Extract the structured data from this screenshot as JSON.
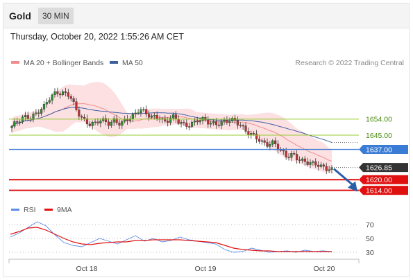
{
  "header": {
    "symbol": "Gold",
    "timeframe": "30 MIN",
    "timestamp": "Thursday, October 20, 2022 1:55:26 AM CET"
  },
  "legend": {
    "bollinger_label": "MA 20 + Bollinger Bands",
    "ma50_label": "MA 50",
    "credit": "Research © 2022 Trading Central",
    "rsi_label": "RSI",
    "rsi_ma_label": "9MA"
  },
  "colors": {
    "candle_up": "#2e8b2e",
    "candle_down": "#c03030",
    "bollinger_band": "#fbd6d8",
    "ma20": "#f08c8c",
    "ma50": "#3c5fa0",
    "resistance": "#9acd32",
    "pivot": "#3a7bd5",
    "support": "#e01010",
    "arrow": "#2a5da8",
    "rsi": "#5b8de6",
    "rsi_ma": "#e01010"
  },
  "chart_data": [
    {
      "type": "candlestick",
      "title": "Gold",
      "timeframe": "30 MIN",
      "x_ticks": [
        "Oct 18",
        "Oct 19",
        "Oct 20"
      ],
      "ylim": [
        1608,
        1682
      ],
      "series": [
        {
          "name": "MA 20 + Bollinger Bands",
          "shape": "band"
        },
        {
          "name": "MA 50",
          "shape": "line"
        }
      ],
      "levels": [
        {
          "value": 1654.0,
          "label": "1654.00",
          "kind": "resistance"
        },
        {
          "value": 1645.0,
          "label": "1645.00",
          "kind": "resistance"
        },
        {
          "value": 1637.0,
          "label": "1637.00",
          "kind": "pivot"
        },
        {
          "value": 1626.85,
          "label": "1626.85",
          "kind": "last_price"
        },
        {
          "value": 1620.0,
          "label": "1620.00",
          "kind": "support"
        },
        {
          "value": 1614.0,
          "label": "1614.00",
          "kind": "support"
        }
      ],
      "close_path": [
        1650,
        1652,
        1655,
        1656,
        1658,
        1660,
        1666,
        1670,
        1669,
        1667,
        1659,
        1655,
        1652,
        1651,
        1653,
        1652,
        1654,
        1651,
        1653,
        1656,
        1661,
        1657,
        1654,
        1655,
        1653,
        1656,
        1652,
        1650,
        1652,
        1654,
        1653,
        1651,
        1652,
        1653,
        1653,
        1652,
        1650,
        1647,
        1644,
        1640,
        1640,
        1642,
        1636,
        1632,
        1634,
        1632,
        1630,
        1628,
        1628,
        1627,
        1627
      ],
      "forecast": {
        "from": 1626.85,
        "to": 1614.0
      }
    },
    {
      "type": "line",
      "title": "RSI",
      "ylim": [
        22,
        78
      ],
      "y_ticks": [
        70,
        50,
        30
      ],
      "series": [
        {
          "name": "RSI",
          "values": [
            52,
            58,
            66,
            74,
            68,
            55,
            44,
            40,
            38,
            44,
            50,
            46,
            42,
            48,
            54,
            46,
            50,
            45,
            47,
            52,
            48,
            46,
            44,
            42,
            34,
            30,
            31,
            36,
            33,
            30,
            31,
            32,
            30,
            33,
            31,
            32,
            31
          ]
        },
        {
          "name": "9MA",
          "values": [
            56,
            60,
            65,
            66,
            62,
            56,
            50,
            45,
            42,
            41,
            43,
            44,
            45,
            45,
            47,
            47,
            48,
            48,
            48,
            48,
            47,
            46,
            45,
            44,
            40,
            36,
            34,
            33,
            32,
            32,
            31,
            31,
            31,
            31,
            31,
            31,
            31
          ]
        }
      ]
    }
  ]
}
